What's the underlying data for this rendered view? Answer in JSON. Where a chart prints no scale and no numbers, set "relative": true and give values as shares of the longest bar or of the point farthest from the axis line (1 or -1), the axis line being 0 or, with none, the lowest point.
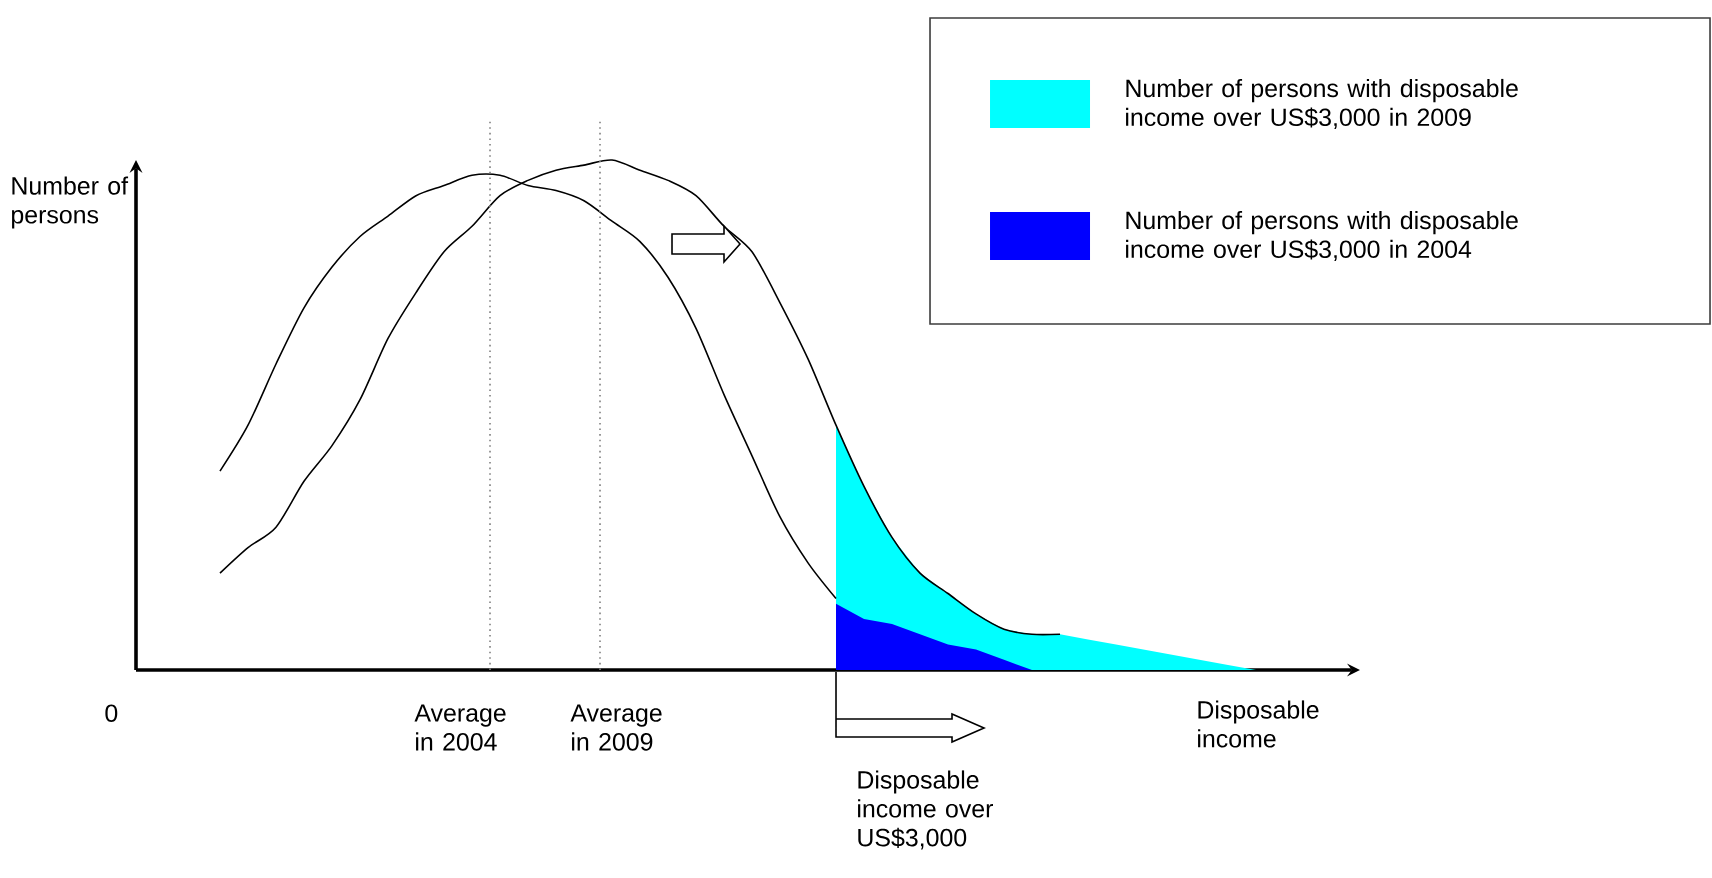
{
  "chart_data": {
    "type": "area",
    "relative": true,
    "xlabel": "Disposable income",
    "ylabel": "Number of persons",
    "legend": "top right",
    "annotations": [
      "0",
      "Average in 2004",
      "Average in 2009",
      "Disposable income over US$3,000"
    ],
    "categories": [
      null,
      null,
      null,
      null,
      null,
      null,
      null,
      null,
      null,
      null,
      null,
      null,
      null,
      null,
      null,
      null,
      null,
      null,
      null,
      null,
      null,
      null,
      null,
      null,
      null,
      null,
      null,
      null,
      null,
      null,
      null,
      null,
      null,
      null,
      null,
      null,
      null,
      null,
      null,
      null
    ],
    "series": [
      {
        "type": "line",
        "color": "#000000",
        "values": [
          0.39,
          0.48,
          0.6,
          0.71,
          0.79,
          0.85,
          0.89,
          0.93,
          0.95,
          0.97,
          0.97,
          0.95,
          0.94,
          0.92,
          0.88,
          0.84,
          0.77,
          0.67,
          0.54,
          0.42,
          0.3,
          0.21,
          0.14,
          null,
          null,
          null,
          null,
          null,
          null,
          null,
          null,
          null,
          null,
          null,
          null,
          null,
          null,
          null,
          null,
          null
        ]
      },
      {
        "type": "line",
        "color": "#000000",
        "values": [
          0.19,
          0.24,
          0.28,
          0.37,
          0.44,
          0.53,
          0.65,
          0.74,
          0.82,
          0.87,
          0.93,
          0.96,
          0.98,
          0.99,
          1.0,
          0.98,
          0.96,
          0.93,
          0.87,
          0.82,
          0.72,
          0.61,
          0.48,
          0.36,
          0.26,
          0.19,
          0.15,
          0.11,
          0.08,
          0.07,
          0.07,
          null,
          null,
          null,
          null,
          null,
          null,
          null,
          null,
          null
        ]
      },
      {
        "name": "Number of persons with disposable income over US$3,000 in 2009",
        "color": "#00ffff",
        "values": [
          null,
          null,
          null,
          null,
          null,
          null,
          null,
          null,
          null,
          null,
          null,
          null,
          null,
          null,
          null,
          null,
          null,
          null,
          null,
          null,
          null,
          null,
          0.48,
          0.36,
          0.26,
          0.19,
          0.15,
          0.11,
          0.08,
          0.07,
          0.07,
          0.06,
          0.05,
          0.04,
          0.03,
          0.02,
          0.01,
          0.0,
          null,
          null
        ]
      },
      {
        "name": "Number of persons with disposable income over US$3,000 in 2004",
        "color": "#0000ff",
        "values": [
          null,
          null,
          null,
          null,
          null,
          null,
          null,
          null,
          null,
          null,
          null,
          null,
          null,
          null,
          null,
          null,
          null,
          null,
          null,
          null,
          null,
          null,
          0.13,
          0.1,
          0.09,
          0.07,
          0.05,
          0.04,
          0.02,
          0.0,
          null,
          null,
          null,
          null,
          null,
          null,
          null,
          null,
          null,
          null
        ]
      }
    ]
  }
}
